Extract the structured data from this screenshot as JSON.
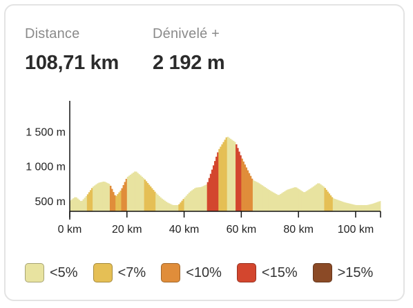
{
  "stats": {
    "distance": {
      "label": "Distance",
      "value": "108,71 km"
    },
    "elevation": {
      "label": "Dénivelé +",
      "value": "2 192 m"
    }
  },
  "legend": [
    {
      "label": "<5%",
      "color": "#e8e3a0"
    },
    {
      "label": "<7%",
      "color": "#e5bf55"
    },
    {
      "label": "<10%",
      "color": "#e08d3a"
    },
    {
      "label": "<15%",
      "color": "#d3462e"
    },
    {
      "label": ">15%",
      "color": "#8b4a26"
    }
  ],
  "chart_data": {
    "type": "area",
    "x_unit": "km",
    "y_unit": "m",
    "xlim": [
      0,
      108.71
    ],
    "ylim": [
      350,
      1900
    ],
    "x_ticks": [
      0,
      20,
      40,
      60,
      80,
      100
    ],
    "x_tick_labels": [
      "0 km",
      "20 km",
      "40 km",
      "60 km",
      "80 km",
      "100 km"
    ],
    "y_ticks": [
      500,
      1000,
      1500
    ],
    "y_tick_labels": [
      "500 m",
      "1 000 m",
      "1 500 m"
    ],
    "profile": [
      {
        "x": 0,
        "y": 500
      },
      {
        "x": 2,
        "y": 560
      },
      {
        "x": 4,
        "y": 490
      },
      {
        "x": 6,
        "y": 580
      },
      {
        "x": 8,
        "y": 700
      },
      {
        "x": 10,
        "y": 760
      },
      {
        "x": 12,
        "y": 780
      },
      {
        "x": 14,
        "y": 740
      },
      {
        "x": 16,
        "y": 560
      },
      {
        "x": 18,
        "y": 660
      },
      {
        "x": 20,
        "y": 840
      },
      {
        "x": 23,
        "y": 930
      },
      {
        "x": 26,
        "y": 820
      },
      {
        "x": 28,
        "y": 720
      },
      {
        "x": 30,
        "y": 620
      },
      {
        "x": 32,
        "y": 540
      },
      {
        "x": 34,
        "y": 480
      },
      {
        "x": 36,
        "y": 440
      },
      {
        "x": 38,
        "y": 440
      },
      {
        "x": 40,
        "y": 540
      },
      {
        "x": 42,
        "y": 630
      },
      {
        "x": 44,
        "y": 690
      },
      {
        "x": 46,
        "y": 700
      },
      {
        "x": 48,
        "y": 740
      },
      {
        "x": 50,
        "y": 980
      },
      {
        "x": 52,
        "y": 1230
      },
      {
        "x": 55,
        "y": 1430
      },
      {
        "x": 58,
        "y": 1340
      },
      {
        "x": 60,
        "y": 1130
      },
      {
        "x": 62,
        "y": 960
      },
      {
        "x": 64,
        "y": 800
      },
      {
        "x": 66,
        "y": 760
      },
      {
        "x": 70,
        "y": 650
      },
      {
        "x": 73,
        "y": 580
      },
      {
        "x": 76,
        "y": 660
      },
      {
        "x": 79,
        "y": 700
      },
      {
        "x": 82,
        "y": 620
      },
      {
        "x": 85,
        "y": 700
      },
      {
        "x": 87,
        "y": 760
      },
      {
        "x": 89,
        "y": 700
      },
      {
        "x": 92,
        "y": 540
      },
      {
        "x": 96,
        "y": 480
      },
      {
        "x": 100,
        "y": 440
      },
      {
        "x": 104,
        "y": 440
      },
      {
        "x": 106,
        "y": 460
      },
      {
        "x": 108.71,
        "y": 500
      }
    ]
  }
}
